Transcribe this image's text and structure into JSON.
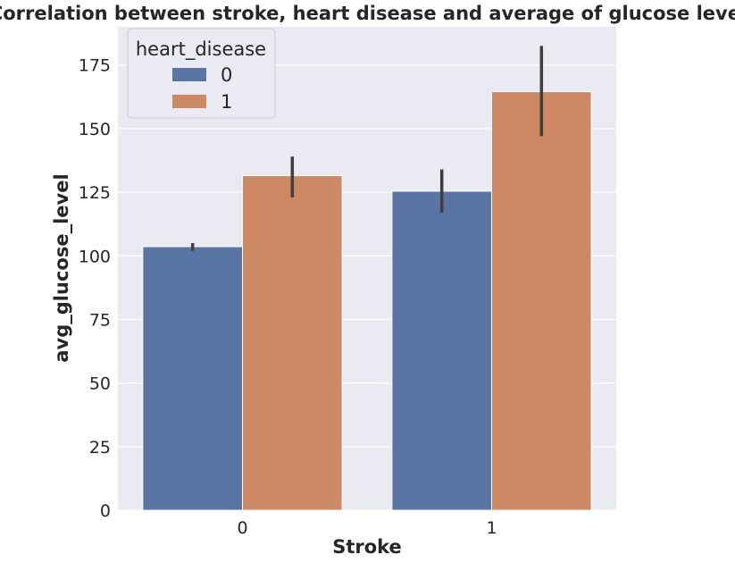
{
  "chart_data": {
    "type": "bar",
    "title": "Correlation between stroke, heart disease and average of glucose level",
    "xlabel": "Stroke",
    "ylabel": "avg_glucose_level",
    "categories": [
      "0",
      "1"
    ],
    "ylim": [
      0,
      190
    ],
    "yticks": [
      0,
      25,
      50,
      75,
      100,
      125,
      150,
      175
    ],
    "grid": true,
    "legend": {
      "title": "heart_disease",
      "placement": "top-left"
    },
    "series": [
      {
        "name": "0",
        "color": "#5875a4",
        "values": [
          103.6,
          125.4
        ],
        "ci": [
          [
            102.0,
            105.0
          ],
          [
            117.0,
            134.0
          ]
        ]
      },
      {
        "name": "1",
        "color": "#cc8963",
        "values": [
          131.5,
          164.5
        ],
        "ci": [
          [
            123.0,
            139.0
          ],
          [
            147.0,
            182.5
          ]
        ]
      }
    ]
  }
}
